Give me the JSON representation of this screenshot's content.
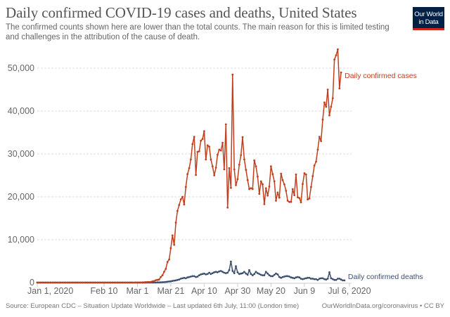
{
  "header": {
    "title": "Daily confirmed COVID-19 cases and deaths, United States",
    "subtitle": "The confirmed counts shown here are lower than the total counts. The main reason for this is limited testing and challenges in the attribution of the cause of death.",
    "logo_line1": "Our World",
    "logo_line2": "in Data"
  },
  "footer": {
    "source": "Source: European CDC – Situation Update Worldwide – Last updated 6th July, 11:00 (London time)",
    "credit": "OurWorldInData.org/coronavirus • CC BY"
  },
  "colors": {
    "cases": "#c0401e",
    "deaths": "#3d4f6e",
    "grid": "#dddddd",
    "logo_bg": "#002147",
    "logo_accent": "#ce261e"
  },
  "chart_data": {
    "type": "line",
    "title": "Daily confirmed COVID-19 cases and deaths, United States",
    "xlabel": "",
    "ylabel": "",
    "x_start": "2020-01-01",
    "x_end": "2020-07-06",
    "x_ticks": [
      "Jan 1, 2020",
      "Feb 10",
      "Mar 1",
      "Mar 21",
      "Apr 10",
      "Apr 30",
      "May 20",
      "Jun 9",
      "Jul 6, 2020"
    ],
    "x_tick_days": [
      0,
      40,
      60,
      80,
      100,
      120,
      140,
      160,
      187
    ],
    "y_ticks": [
      0,
      10000,
      20000,
      30000,
      40000,
      50000
    ],
    "y_tick_labels": [
      "0",
      "10,000",
      "20,000",
      "30,000",
      "40,000",
      "50,000"
    ],
    "ylim": [
      0,
      55000
    ],
    "grid": true,
    "legend": "inline-right",
    "series": [
      {
        "name": "Daily confirmed cases",
        "values": [
          0,
          0,
          0,
          0,
          0,
          0,
          0,
          0,
          0,
          0,
          0,
          0,
          0,
          0,
          0,
          0,
          0,
          0,
          0,
          0,
          0,
          1,
          0,
          0,
          1,
          2,
          0,
          0,
          0,
          0,
          1,
          1,
          0,
          1,
          1,
          0,
          0,
          0,
          0,
          0,
          0,
          0,
          0,
          0,
          0,
          0,
          1,
          0,
          0,
          0,
          0,
          0,
          0,
          0,
          0,
          0,
          20,
          0,
          0,
          20,
          10,
          20,
          24,
          40,
          50,
          100,
          110,
          120,
          150,
          280,
          350,
          550,
          620,
          700,
          1300,
          1700,
          2500,
          3200,
          4800,
          5400,
          8000,
          11000,
          8800,
          14000,
          16700,
          18100,
          19400,
          20000,
          18200,
          22300,
          25300,
          26700,
          28700,
          32300,
          34000,
          25100,
          30500,
          30600,
          33100,
          33500,
          35300,
          28700,
          32000,
          31700,
          28700,
          27100,
          25000,
          26800,
          29800,
          31000,
          30800,
          32600,
          26400,
          36900,
          17500,
          26700,
          22100,
          48500,
          26400,
          22700,
          24100,
          27500,
          29700,
          33900,
          28700,
          26300,
          23900,
          21800,
          22000,
          21800,
          28500,
          27100,
          24700,
          20700,
          23600,
          22900,
          18300,
          22000,
          20300,
          22400,
          27100,
          25300,
          23600,
          19100,
          21000,
          19800,
          25400,
          23900,
          22900,
          21400,
          19100,
          18800,
          18800,
          21800,
          20400,
          25200,
          19900,
          19700,
          18700,
          23000,
          25500,
          25200,
          19400,
          19600,
          22300,
          24800,
          27300,
          28200,
          31000,
          34000,
          33000,
          38000,
          42000,
          41000,
          45000,
          39000,
          41000,
          43000,
          52000,
          53000,
          54400,
          45300,
          49000
        ]
      },
      {
        "name": "Daily confirmed deaths",
        "values": [
          0,
          0,
          0,
          0,
          0,
          0,
          0,
          0,
          0,
          0,
          0,
          0,
          0,
          0,
          0,
          0,
          0,
          0,
          0,
          0,
          0,
          0,
          0,
          0,
          0,
          0,
          0,
          0,
          0,
          0,
          0,
          0,
          0,
          0,
          0,
          0,
          0,
          0,
          0,
          0,
          0,
          0,
          0,
          0,
          0,
          0,
          0,
          0,
          0,
          0,
          0,
          0,
          0,
          0,
          0,
          0,
          0,
          0,
          1,
          0,
          1,
          1,
          2,
          3,
          4,
          5,
          6,
          8,
          8,
          10,
          12,
          20,
          25,
          40,
          60,
          80,
          100,
          150,
          200,
          240,
          300,
          400,
          450,
          500,
          600,
          700,
          900,
          1000,
          1100,
          1000,
          1200,
          1300,
          1400,
          1500,
          1500,
          1300,
          1400,
          1700,
          1900,
          2000,
          2100,
          1900,
          2000,
          2300,
          2000,
          2200,
          2400,
          2500,
          2400,
          2600,
          2700,
          2500,
          2300,
          2200,
          2300,
          2900,
          4900,
          2700,
          2200,
          3800,
          2400,
          2000,
          2100,
          2200,
          2500,
          2100,
          1800,
          2900,
          2000,
          1700,
          2000,
          2500,
          2200,
          2000,
          1800,
          1700,
          1700,
          2500,
          2100,
          1700,
          1500,
          1500,
          1800,
          2100,
          1900,
          1300,
          1100,
          1300,
          1400,
          1500,
          1500,
          1400,
          1200,
          1100,
          1000,
          1200,
          1300,
          1200,
          900,
          800,
          900,
          1000,
          1100,
          1100,
          900,
          900,
          800,
          800,
          600,
          900,
          1000,
          1000,
          800,
          700,
          900,
          2400,
          1000,
          800,
          600,
          600,
          900,
          900,
          700,
          500,
          500
        ]
      }
    ]
  }
}
